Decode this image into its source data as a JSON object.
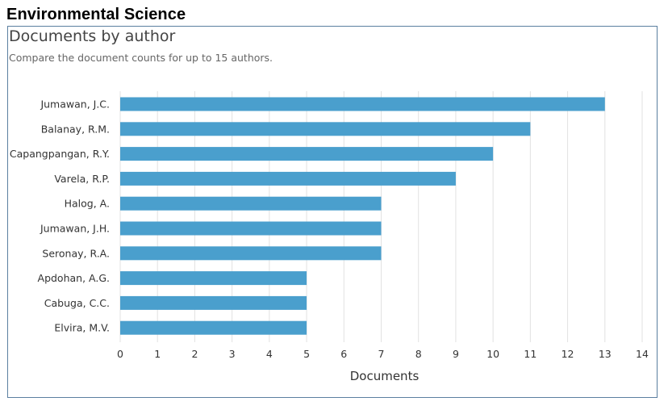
{
  "page": {
    "heading": "Environmental Science"
  },
  "chart_data": {
    "type": "bar",
    "orientation": "horizontal",
    "title": "Documents by author",
    "subtitle": "Compare the document counts for up to 15 authors.",
    "categories": [
      "Jumawan, J.C.",
      "Balanay, R.M.",
      "Capangpangan, R.Y.",
      "Varela, R.P.",
      "Halog, A.",
      "Jumawan, J.H.",
      "Seronay, R.A.",
      "Apdohan, A.G.",
      "Cabuga, C.C.",
      "Elvira, M.V."
    ],
    "values": [
      13,
      11,
      10,
      9,
      7,
      7,
      7,
      5,
      5,
      5
    ],
    "xlabel": "Documents",
    "ylabel": "",
    "xlim": [
      0,
      14
    ],
    "xticks": [
      "0",
      "1",
      "2",
      "3",
      "4",
      "5",
      "6",
      "7",
      "8",
      "9",
      "10",
      "11",
      "12",
      "13",
      "14"
    ],
    "grid": true,
    "bar_color": "#4a9fcd",
    "grid_color": "#e2e2e2"
  }
}
